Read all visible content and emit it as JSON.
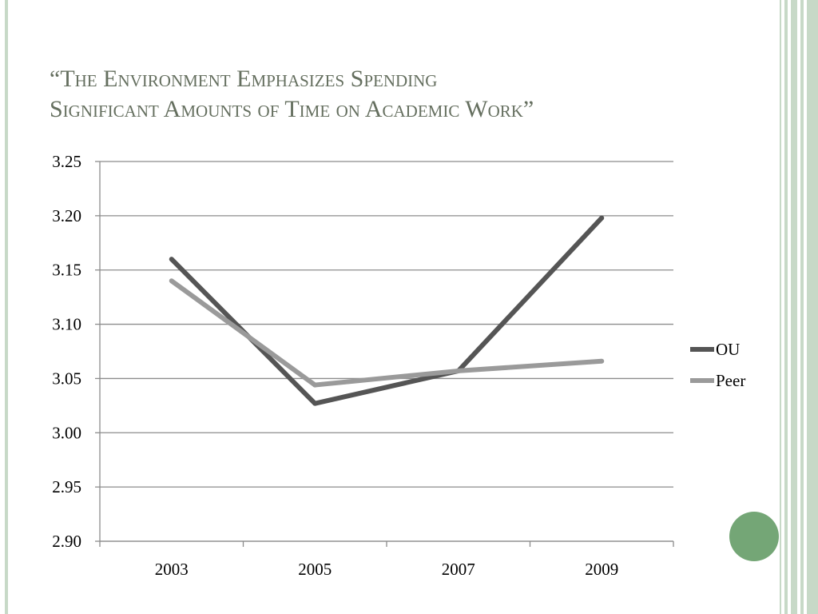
{
  "slide": {
    "title_line1": "“The Environment Emphasizes Spending",
    "title_line2": "Significant Amounts of Time on Academic Work”",
    "accent_color": "#74a676",
    "stripe_color": "#c7d9c7"
  },
  "chart_data": {
    "type": "line",
    "title": "",
    "xlabel": "",
    "ylabel": "",
    "categories": [
      "2003",
      "2005",
      "2007",
      "2009"
    ],
    "ylim": [
      2.9,
      3.25
    ],
    "ytick_labels": [
      "3.25",
      "3.20",
      "3.15",
      "3.10",
      "3.05",
      "3.00",
      "2.95",
      "2.90"
    ],
    "grid": true,
    "legend_position": "right",
    "series": [
      {
        "name": "OU",
        "values": [
          3.16,
          3.027,
          3.057,
          3.198
        ],
        "color": "#555555"
      },
      {
        "name": "Peer",
        "values": [
          3.14,
          3.044,
          3.057,
          3.066
        ],
        "color": "#9a9a9a"
      }
    ]
  }
}
